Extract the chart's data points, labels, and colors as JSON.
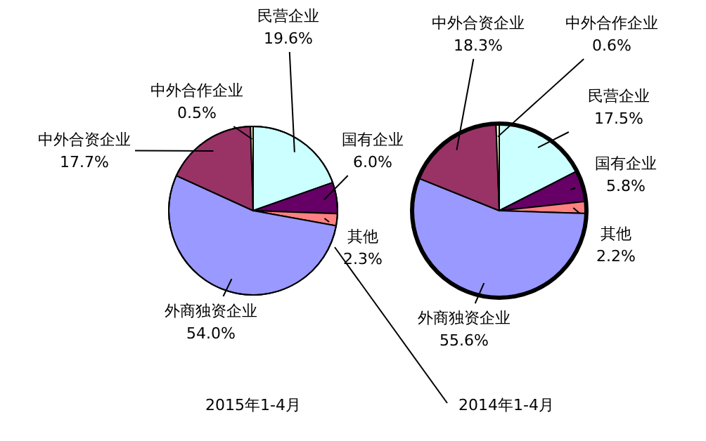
{
  "chart_data": [
    {
      "type": "pie",
      "title": "2015年1-4月",
      "categories": [
        "民营企业",
        "国有企业",
        "其他",
        "外商独资企业",
        "中外合资企业",
        "中外合作企业"
      ],
      "values": [
        19.6,
        6.0,
        2.3,
        54.0,
        17.7,
        0.5
      ],
      "value_labels": [
        "19.6%",
        "6.0%",
        "2.3%",
        "54.0%",
        "17.7%",
        "0.5%"
      ],
      "colors": [
        "#ccffff",
        "#660066",
        "#ff8080",
        "#9999ff",
        "#993366",
        "#ffffcc"
      ]
    },
    {
      "type": "pie",
      "title": "2014年1-4月",
      "categories": [
        "民营企业",
        "国有企业",
        "其他",
        "外商独资企业",
        "中外合资企业",
        "中外合作企业"
      ],
      "values": [
        17.5,
        5.8,
        2.2,
        55.6,
        18.3,
        0.6
      ],
      "value_labels": [
        "17.5%",
        "5.8%",
        "2.2%",
        "55.6%",
        "18.3%",
        "0.6%"
      ],
      "colors": [
        "#ccffff",
        "#660066",
        "#ff8080",
        "#9999ff",
        "#993366",
        "#ffffcc"
      ]
    }
  ]
}
